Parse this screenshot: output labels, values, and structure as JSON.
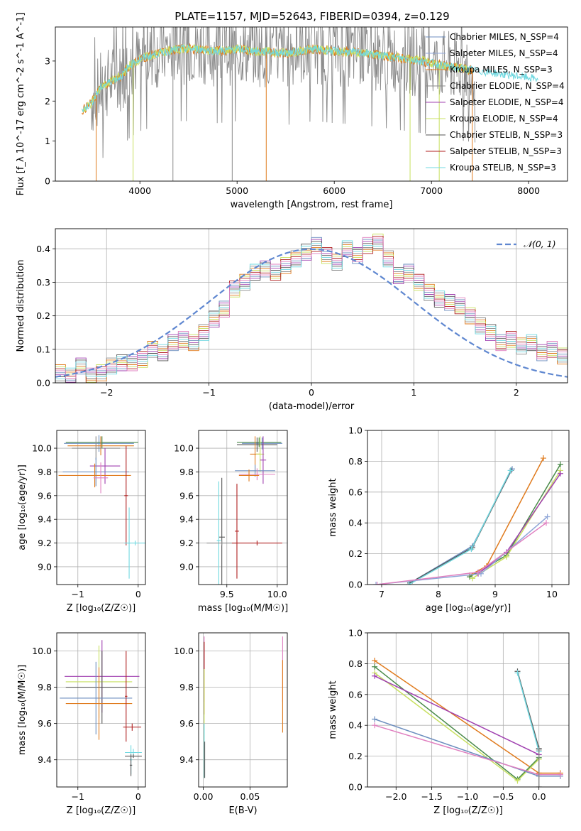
{
  "figure_title": "PLATE=1157, MJD=52643, FIBERID=0394, z=0.129",
  "colors": {
    "Chabrier MILES": "#6c8ebf",
    "Salpeter MILES": "#8fa6d8",
    "Kroupa MILES": "#e07b1e",
    "Chabrier ELODIE": "#8a8a8a",
    "Salpeter ELODIE": "#a040b0",
    "Kroupa ELODIE": "#c8e060",
    "Chabrier STELIB": "#555555",
    "Salpeter STELIB": "#b02020",
    "Kroupa STELIB": "#70d8e0",
    "pink": "#e080c0",
    "green": "#4a8a4a",
    "normal_curve": "#5f87d0"
  },
  "chart_data": [
    {
      "id": "spectrum",
      "type": "line",
      "title": "PLATE=1157, MJD=52643, FIBERID=0394, z=0.129",
      "xlabel": "wavelength [Angstrom, rest frame]",
      "ylabel": "Flux [f_λ 10^-17 erg cm^-2 s^-1 A^-1]",
      "xlim": [
        3130,
        8400
      ],
      "ylim": [
        0,
        3.85
      ],
      "xticks": [
        4000,
        5000,
        6000,
        7000,
        8000
      ],
      "yticks": [
        0,
        1,
        2,
        3
      ],
      "grid": false,
      "legend_position": "right",
      "legend": [
        "Chabrier MILES, N_SSP=4",
        "Salpeter MILES, N_SSP=4",
        "Kroupa MILES, N_SSP=3",
        "Chabrier ELODIE, N_SSP=4",
        "Salpeter ELODIE, N_SSP=4",
        "Kroupa ELODIE, N_SSP=4",
        "Chabrier STELIB, N_SSP=3",
        "Salpeter STELIB, N_SSP=3",
        "Kroupa STELIB, N_SSP=3"
      ],
      "continuum": {
        "x": [
          3400,
          3500,
          3600,
          3700,
          3800,
          3900,
          4000,
          4200,
          4400,
          4600,
          4800,
          5000,
          5200,
          5500,
          5800,
          6000,
          6300,
          6600,
          6900,
          7200,
          7500,
          7800,
          8100
        ],
        "y": [
          1.75,
          1.95,
          2.35,
          2.5,
          2.6,
          2.9,
          3.05,
          3.2,
          3.3,
          3.3,
          3.25,
          3.3,
          3.25,
          3.2,
          3.3,
          3.25,
          3.2,
          3.1,
          3.0,
          2.85,
          2.75,
          2.65,
          2.55
        ]
      }
    },
    {
      "id": "residuals",
      "type": "histogram",
      "xlabel": "(data-model)/error",
      "ylabel": "Normed distribution",
      "xlim": [
        -2.5,
        2.5
      ],
      "ylim": [
        0,
        0.46
      ],
      "xticks": [
        -2,
        -1,
        0,
        1,
        2
      ],
      "xticklabels": [
        "−2",
        "−1",
        "0",
        "1",
        "2"
      ],
      "yticks": [
        0.0,
        0.1,
        0.2,
        0.3,
        0.4
      ],
      "grid": true,
      "legend_position": "top-right",
      "legend": [
        "𝒩(0, 1)"
      ],
      "bin_width": 0.1,
      "bins_start": -2.5,
      "values": [
        0.03,
        0.02,
        0.05,
        0.02,
        0.03,
        0.05,
        0.06,
        0.06,
        0.07,
        0.1,
        0.09,
        0.12,
        0.13,
        0.12,
        0.15,
        0.19,
        0.22,
        0.28,
        0.3,
        0.33,
        0.34,
        0.33,
        0.35,
        0.37,
        0.39,
        0.41,
        0.38,
        0.36,
        0.4,
        0.38,
        0.41,
        0.42,
        0.37,
        0.32,
        0.33,
        0.3,
        0.27,
        0.25,
        0.24,
        0.23,
        0.2,
        0.17,
        0.15,
        0.12,
        0.13,
        0.11,
        0.12,
        0.09,
        0.1,
        0.08,
        0.07,
        0.06,
        0.07,
        0.05,
        0.04,
        0.05
      ]
    },
    {
      "id": "age-vs-Z",
      "type": "scatter",
      "xlabel": "Z [log₁₀(Z/Z☉)]",
      "ylabel": "age  [log₁₀(age/yr)]",
      "xlim": [
        -1.35,
        0.12
      ],
      "ylim": [
        8.85,
        10.15
      ],
      "xticks": [
        -1,
        0
      ],
      "xticklabels": [
        "−1",
        "0"
      ],
      "yticks": [
        9.0,
        9.2,
        9.4,
        9.6,
        9.8,
        10.0
      ],
      "grid": true,
      "points": [
        {
          "x": -0.65,
          "y": 10.04,
          "xerr": 0.58,
          "yerr": 0.07,
          "color": "#6c8ebf"
        },
        {
          "x": -0.6,
          "y": 10.05,
          "xerr": 0.6,
          "yerr": 0.05,
          "color": "#4a8a4a"
        },
        {
          "x": -0.62,
          "y": 10.02,
          "xerr": 0.55,
          "yerr": 0.08,
          "color": "#e07b1e"
        },
        {
          "x": -0.7,
          "y": 10.0,
          "xerr": 0.4,
          "yerr": 0.1,
          "color": "#8a8a8a"
        },
        {
          "x": -0.55,
          "y": 9.85,
          "xerr": 0.25,
          "yerr": 0.15,
          "color": "#a040b0"
        },
        {
          "x": -0.7,
          "y": 9.8,
          "xerr": 0.55,
          "yerr": 0.12,
          "color": "#6c8ebf"
        },
        {
          "x": -0.72,
          "y": 9.77,
          "xerr": 0.6,
          "yerr": 0.1,
          "color": "#e07b1e"
        },
        {
          "x": -0.62,
          "y": 9.75,
          "xerr": 0.12,
          "yerr": 0.13,
          "color": "#e080c0"
        },
        {
          "x": -0.2,
          "y": 9.6,
          "xerr": 0.03,
          "yerr": 0.42,
          "color": "#b02020"
        },
        {
          "x": -0.15,
          "y": 9.2,
          "xerr": 0.02,
          "yerr": 0.3,
          "color": "#70d8e0"
        },
        {
          "x": -0.05,
          "y": 9.2,
          "xerr": 0.18,
          "yerr": 0.02,
          "color": "#70d8e0"
        }
      ]
    },
    {
      "id": "age-vs-mass",
      "type": "scatter",
      "xlabel": "mass [log₁₀(M/M☉)]",
      "ylabel": "",
      "xlim": [
        9.22,
        10.1
      ],
      "ylim": [
        8.85,
        10.15
      ],
      "xticks": [
        9.5,
        10.0
      ],
      "xticklabels": [
        "9.5",
        "10.0"
      ],
      "yticks": [
        9.0,
        9.2,
        9.4,
        9.6,
        9.8,
        10.0
      ],
      "grid": true,
      "points": [
        {
          "x": 9.85,
          "y": 10.04,
          "xerr": 0.2,
          "yerr": 0.05,
          "color": "#6c8ebf"
        },
        {
          "x": 9.82,
          "y": 10.05,
          "xerr": 0.22,
          "yerr": 0.04,
          "color": "#4a8a4a"
        },
        {
          "x": 9.8,
          "y": 10.03,
          "xerr": 0.2,
          "yerr": 0.06,
          "color": "#555555"
        },
        {
          "x": 9.78,
          "y": 9.95,
          "xerr": 0.05,
          "yerr": 0.15,
          "color": "#e07b1e"
        },
        {
          "x": 9.83,
          "y": 9.95,
          "xerr": 0.04,
          "yerr": 0.15,
          "color": "#c8e060"
        },
        {
          "x": 9.86,
          "y": 9.9,
          "xerr": 0.03,
          "yerr": 0.2,
          "color": "#a040b0"
        },
        {
          "x": 9.78,
          "y": 9.81,
          "xerr": 0.2,
          "yerr": 0.05,
          "color": "#6c8ebf"
        },
        {
          "x": 9.8,
          "y": 9.78,
          "xerr": 0.18,
          "yerr": 0.05,
          "color": "#e080c0"
        },
        {
          "x": 9.72,
          "y": 9.77,
          "xerr": 0.1,
          "yerr": 0.05,
          "color": "#e07b1e"
        },
        {
          "x": 9.45,
          "y": 9.25,
          "xerr": 0.03,
          "yerr": 0.5,
          "color": "#555555"
        },
        {
          "x": 9.42,
          "y": 9.22,
          "xerr": 0.02,
          "yerr": 0.5,
          "color": "#70d8e0"
        },
        {
          "x": 9.6,
          "y": 9.3,
          "xerr": 0.02,
          "yerr": 0.4,
          "color": "#b02020"
        },
        {
          "x": 9.45,
          "y": 9.2,
          "xerr": 0.15,
          "yerr": 0.02,
          "color": "#8a8a8a"
        },
        {
          "x": 9.8,
          "y": 9.2,
          "xerr": 0.25,
          "yerr": 0.02,
          "color": "#b02020"
        }
      ]
    },
    {
      "id": "massweight-vs-age",
      "type": "line",
      "xlabel": "age  [log₁₀(age/yr)]",
      "ylabel": "mass weight",
      "xlim": [
        6.75,
        10.3
      ],
      "ylim": [
        0,
        1.0
      ],
      "xticks": [
        7,
        8,
        9,
        10
      ],
      "yticks": [
        0.0,
        0.2,
        0.4,
        0.6,
        0.8,
        1.0
      ],
      "grid": true,
      "series": [
        {
          "color": "#6c8ebf",
          "x": [
            7.5,
            8.6,
            9.3
          ],
          "y": [
            0.01,
            0.25,
            0.75
          ]
        },
        {
          "color": "#555555",
          "x": [
            7.5,
            8.6,
            9.28
          ],
          "y": [
            0.01,
            0.24,
            0.74
          ]
        },
        {
          "color": "#70d8e0",
          "x": [
            7.48,
            8.58,
            9.27
          ],
          "y": [
            0.0,
            0.23,
            0.74
          ]
        },
        {
          "color": "#e07b1e",
          "x": [
            8.55,
            8.85,
            9.85
          ],
          "y": [
            0.06,
            0.12,
            0.82
          ]
        },
        {
          "color": "#4a8a4a",
          "x": [
            8.55,
            9.2,
            10.15
          ],
          "y": [
            0.05,
            0.19,
            0.78
          ]
        },
        {
          "color": "#c8e060",
          "x": [
            8.6,
            9.2,
            10.15
          ],
          "y": [
            0.04,
            0.18,
            0.74
          ]
        },
        {
          "color": "#a040b0",
          "x": [
            8.7,
            9.2,
            10.15
          ],
          "y": [
            0.07,
            0.21,
            0.72
          ]
        },
        {
          "color": "#8fa6d8",
          "x": [
            6.9,
            8.75,
            9.92
          ],
          "y": [
            0.0,
            0.07,
            0.44
          ]
        },
        {
          "color": "#e080c0",
          "x": [
            6.92,
            8.7,
            9.9
          ],
          "y": [
            0.0,
            0.08,
            0.4
          ]
        }
      ]
    },
    {
      "id": "mass-vs-Z",
      "type": "scatter",
      "xlabel": "Z [log₁₀(Z/Z☉)]",
      "ylabel": "mass [log₁₀(M/M☉)]",
      "xlim": [
        -1.35,
        0.12
      ],
      "ylim": [
        9.25,
        10.1
      ],
      "xticks": [
        -1,
        0
      ],
      "xticklabels": [
        "−1",
        "0"
      ],
      "yticks": [
        9.4,
        9.6,
        9.8,
        10.0
      ],
      "grid": true,
      "points": [
        {
          "x": -0.6,
          "y": 9.86,
          "xerr": 0.62,
          "yerr": 0.2,
          "color": "#a040b0"
        },
        {
          "x": -0.65,
          "y": 9.83,
          "xerr": 0.55,
          "yerr": 0.2,
          "color": "#c8e060"
        },
        {
          "x": -0.6,
          "y": 9.8,
          "xerr": 0.6,
          "yerr": 0.2,
          "color": "#555555"
        },
        {
          "x": -0.7,
          "y": 9.74,
          "xerr": 0.6,
          "yerr": 0.2,
          "color": "#6c8ebf"
        },
        {
          "x": -0.65,
          "y": 9.71,
          "xerr": 0.55,
          "yerr": 0.2,
          "color": "#e07b1e"
        },
        {
          "x": -0.2,
          "y": 9.75,
          "xerr": 0.02,
          "yerr": 0.25,
          "color": "#b02020"
        },
        {
          "x": -0.1,
          "y": 9.58,
          "xerr": 0.15,
          "yerr": 0.02,
          "color": "#b02020"
        },
        {
          "x": -0.12,
          "y": 9.4,
          "xerr": 0.02,
          "yerr": 0.08,
          "color": "#70d8e0"
        },
        {
          "x": -0.08,
          "y": 9.44,
          "xerr": 0.14,
          "yerr": 0.02,
          "color": "#70d8e0"
        },
        {
          "x": -0.12,
          "y": 9.37,
          "xerr": 0.02,
          "yerr": 0.06,
          "color": "#555555"
        },
        {
          "x": -0.08,
          "y": 9.42,
          "xerr": 0.14,
          "yerr": 0.01,
          "color": "#555555"
        }
      ]
    },
    {
      "id": "mass-vs-ebv",
      "type": "scatter",
      "xlabel": "E(B-V)",
      "ylabel": "",
      "xlim": [
        -0.005,
        0.09
      ],
      "ylim": [
        9.25,
        10.1
      ],
      "xticks": [
        0.0,
        0.05
      ],
      "xticklabels": [
        "0.00",
        "0.05"
      ],
      "yticks": [
        9.4,
        9.6,
        9.8,
        10.0
      ],
      "grid": true,
      "points": [
        {
          "x": 0.001,
          "y": 9.9,
          "xerr": 0,
          "yerr": 0.18,
          "color": "#e080c0"
        },
        {
          "x": 0.001,
          "y": 9.85,
          "xerr": 0,
          "yerr": 0.2,
          "color": "#b02020"
        },
        {
          "x": 0.001,
          "y": 9.6,
          "xerr": 0,
          "yerr": 0.3,
          "color": "#c8e060"
        },
        {
          "x": 0.001,
          "y": 9.45,
          "xerr": 0,
          "yerr": 0.15,
          "color": "#70d8e0"
        },
        {
          "x": 0.0015,
          "y": 9.4,
          "xerr": 0,
          "yerr": 0.1,
          "color": "#555555"
        },
        {
          "x": 0.085,
          "y": 9.9,
          "xerr": 0,
          "yerr": 0.18,
          "color": "#e080c0"
        },
        {
          "x": 0.085,
          "y": 9.75,
          "xerr": 0,
          "yerr": 0.2,
          "color": "#e07b1e"
        }
      ]
    },
    {
      "id": "massweight-vs-Z",
      "type": "line",
      "xlabel": "Z [log₁₀(Z/Z☉)]",
      "ylabel": "mass weight",
      "xlim": [
        -2.4,
        0.42
      ],
      "ylim": [
        0,
        1.0
      ],
      "xticks": [
        -2.0,
        -1.5,
        -1.0,
        -0.5,
        0.0
      ],
      "xticklabels": [
        "−2.0",
        "−1.5",
        "−1.0",
        "−0.5",
        "0.0"
      ],
      "yticks": [
        0.0,
        0.2,
        0.4,
        0.6,
        0.8,
        1.0
      ],
      "grid": true,
      "series": [
        {
          "color": "#e07b1e",
          "x": [
            -2.3,
            0.0,
            0.3
          ],
          "y": [
            0.82,
            0.09,
            0.09
          ]
        },
        {
          "color": "#4a8a4a",
          "x": [
            -2.3,
            -0.3,
            0.0
          ],
          "y": [
            0.78,
            0.05,
            0.19
          ]
        },
        {
          "color": "#c8e060",
          "x": [
            -2.3,
            -0.3,
            0.0
          ],
          "y": [
            0.74,
            0.04,
            0.18
          ]
        },
        {
          "color": "#a040b0",
          "x": [
            -2.3,
            0.0
          ],
          "y": [
            0.72,
            0.21
          ]
        },
        {
          "color": "#6c8ebf",
          "x": [
            -2.3,
            0.0,
            0.3
          ],
          "y": [
            0.44,
            0.07,
            0.07
          ]
        },
        {
          "color": "#e080c0",
          "x": [
            -2.3,
            0.0,
            0.3
          ],
          "y": [
            0.4,
            0.08,
            0.08
          ]
        },
        {
          "color": "#555555",
          "x": [
            -0.3,
            0.0
          ],
          "y": [
            0.75,
            0.25
          ]
        },
        {
          "color": "#70d8e0",
          "x": [
            -0.3,
            0.0
          ],
          "y": [
            0.74,
            0.23
          ]
        },
        {
          "color": "#8a8a8a",
          "x": [
            0.0,
            0.0
          ],
          "y": [
            0.24,
            0.0
          ]
        }
      ]
    }
  ]
}
